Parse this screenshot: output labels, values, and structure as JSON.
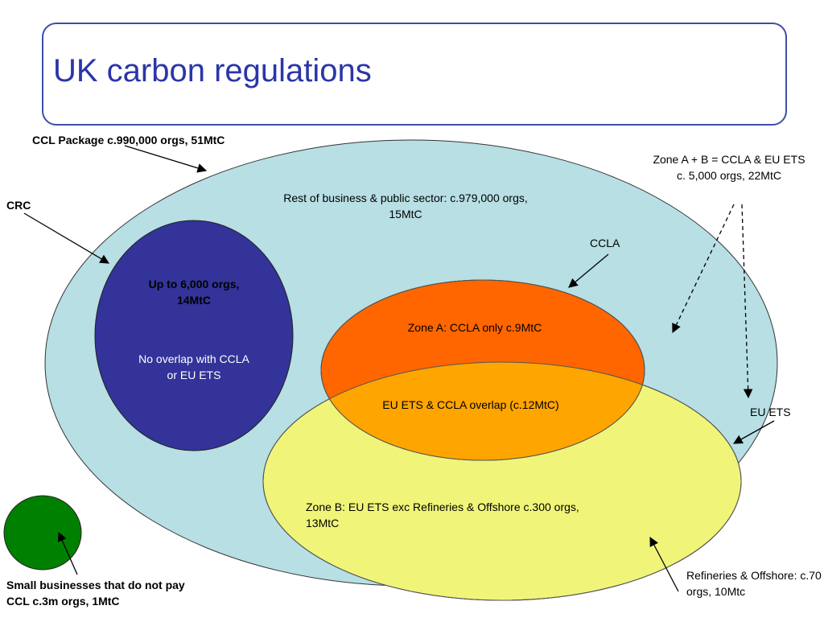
{
  "title": "UK carbon regulations",
  "colors": {
    "ccl_package": "#b7dfe4",
    "crc": "#333399",
    "ccla": "#ff6600",
    "overlap": "#ffa500",
    "eu_ets": "#f0f579",
    "small_business": "#008000"
  },
  "labels": {
    "ccl_package": "CCL Package c.990,000 orgs, 51MtC",
    "crc": "CRC",
    "zone_ab": "Zone A + B = CCLA & EU ETS c. 5,000 orgs, 22MtC",
    "rest_of_business": "Rest of business & public sector: c.979,000 orgs, 15MtC",
    "ccla": "CCLA",
    "crc_orgs": "Up to 6,000 orgs, 14MtC",
    "crc_no_overlap": "No overlap with CCLA or EU ETS",
    "zone_a": "Zone A: CCLA only c.9MtC",
    "overlap": "EU ETS & CCLA overlap (c.12MtC)",
    "eu_ets": "EU ETS",
    "zone_b": "Zone B: EU ETS exc Refineries & Offshore c.300 orgs, 13MtC",
    "refineries": "Refineries & Offshore: c.70 orgs, 10Mtc",
    "small_business": "Small businesses that do not pay CCL c.3m orgs, 1MtC"
  }
}
